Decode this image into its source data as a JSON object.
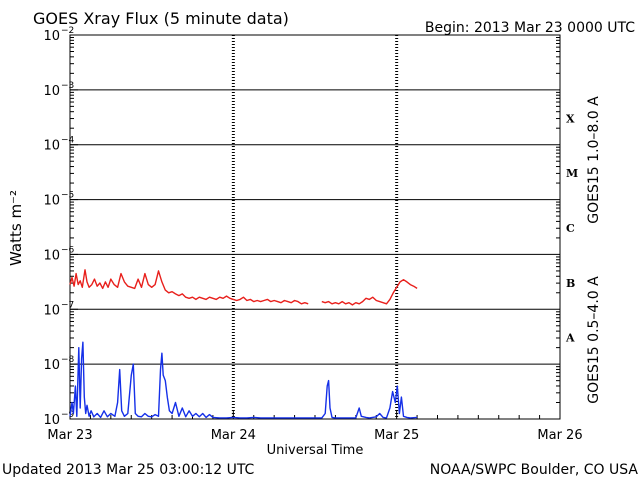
{
  "title": "GOES Xray Flux (5 minute data)",
  "begin": "Begin:  2013 Mar 23 0000 UTC",
  "updated": "Updated 2013 Mar 25 03:00:12 UTC",
  "credit": "NOAA/SWPC Boulder, CO USA",
  "chart_data": {
    "type": "line",
    "xlabel": "Universal Time",
    "ylabel": "Watts m⁻²",
    "y_scale": "log",
    "ylim": [
      1e-09,
      0.01
    ],
    "xlim": [
      0,
      72
    ],
    "x_unit": "hours after 2013 Mar 23 0000 UTC",
    "x_ticks": [
      {
        "x": 0,
        "label": "Mar 23"
      },
      {
        "x": 24,
        "label": "Mar 24"
      },
      {
        "x": 48,
        "label": "Mar 25"
      },
      {
        "x": 72,
        "label": "Mar 26"
      }
    ],
    "y_ticks": [
      {
        "exp": -2,
        "label": "10"
      },
      {
        "exp": -3,
        "label": "10"
      },
      {
        "exp": -4,
        "label": "10"
      },
      {
        "exp": -5,
        "label": "10"
      },
      {
        "exp": -6,
        "label": "10"
      },
      {
        "exp": -7,
        "label": "10"
      },
      {
        "exp": -8,
        "label": "10"
      },
      {
        "exp": -9,
        "label": "10"
      }
    ],
    "flare_classes": [
      {
        "label": "X",
        "exp": -3.5
      },
      {
        "label": "M",
        "exp": -4.5
      },
      {
        "label": "C",
        "exp": -5.5
      },
      {
        "label": "B",
        "exp": -6.5
      },
      {
        "label": "A",
        "exp": -7.5
      }
    ],
    "grid": true,
    "series": [
      {
        "name": "GOES15 1.0–8.0 A",
        "color": "#e8201c",
        "points": [
          [
            0,
            -6.55
          ],
          [
            0.3,
            -6.42
          ],
          [
            0.6,
            -6.58
          ],
          [
            0.9,
            -6.35
          ],
          [
            1.2,
            -6.55
          ],
          [
            1.5,
            -6.48
          ],
          [
            1.8,
            -6.6
          ],
          [
            2.2,
            -6.28
          ],
          [
            2.5,
            -6.5
          ],
          [
            2.8,
            -6.6
          ],
          [
            3.2,
            -6.55
          ],
          [
            3.6,
            -6.45
          ],
          [
            4.0,
            -6.58
          ],
          [
            4.4,
            -6.52
          ],
          [
            4.8,
            -6.62
          ],
          [
            5.2,
            -6.5
          ],
          [
            5.6,
            -6.6
          ],
          [
            6.0,
            -6.45
          ],
          [
            6.5,
            -6.55
          ],
          [
            7.0,
            -6.6
          ],
          [
            7.5,
            -6.35
          ],
          [
            8.0,
            -6.5
          ],
          [
            8.5,
            -6.58
          ],
          [
            9.0,
            -6.6
          ],
          [
            9.5,
            -6.62
          ],
          [
            10.0,
            -6.45
          ],
          [
            10.5,
            -6.6
          ],
          [
            11.0,
            -6.35
          ],
          [
            11.5,
            -6.55
          ],
          [
            12.0,
            -6.6
          ],
          [
            12.5,
            -6.55
          ],
          [
            13.0,
            -6.3
          ],
          [
            13.5,
            -6.5
          ],
          [
            14.0,
            -6.65
          ],
          [
            14.5,
            -6.7
          ],
          [
            15.0,
            -6.68
          ],
          [
            15.5,
            -6.72
          ],
          [
            16.0,
            -6.75
          ],
          [
            16.5,
            -6.72
          ],
          [
            17.0,
            -6.78
          ],
          [
            17.5,
            -6.8
          ],
          [
            18.0,
            -6.78
          ],
          [
            18.5,
            -6.82
          ],
          [
            19.0,
            -6.78
          ],
          [
            19.5,
            -6.8
          ],
          [
            20.0,
            -6.82
          ],
          [
            20.5,
            -6.78
          ],
          [
            21.0,
            -6.8
          ],
          [
            21.5,
            -6.82
          ],
          [
            22.0,
            -6.78
          ],
          [
            22.5,
            -6.8
          ],
          [
            23.0,
            -6.76
          ],
          [
            23.5,
            -6.8
          ],
          [
            24.0,
            -6.82
          ],
          [
            24.5,
            -6.84
          ],
          [
            25.0,
            -6.82
          ],
          [
            25.5,
            -6.78
          ],
          [
            26.0,
            -6.84
          ],
          [
            26.5,
            -6.82
          ],
          [
            27.0,
            -6.86
          ],
          [
            27.5,
            -6.84
          ],
          [
            28.0,
            -6.86
          ],
          [
            28.5,
            -6.84
          ],
          [
            29.0,
            -6.82
          ],
          [
            29.5,
            -6.86
          ],
          [
            30.0,
            -6.84
          ],
          [
            30.5,
            -6.86
          ],
          [
            31.0,
            -6.88
          ],
          [
            31.5,
            -6.84
          ],
          [
            32.0,
            -6.86
          ],
          [
            32.5,
            -6.88
          ],
          [
            33.0,
            -6.84
          ],
          [
            33.5,
            -6.86
          ],
          [
            34.0,
            -6.9
          ],
          [
            34.5,
            -6.88
          ],
          [
            35.0,
            -6.9
          ],
          null,
          [
            37.0,
            -6.86
          ],
          [
            37.5,
            -6.88
          ],
          [
            38.0,
            -6.86
          ],
          [
            38.5,
            -6.9
          ],
          [
            39.0,
            -6.88
          ],
          [
            39.5,
            -6.9
          ],
          [
            40.0,
            -6.86
          ],
          [
            40.5,
            -6.9
          ],
          [
            41.0,
            -6.88
          ],
          [
            41.5,
            -6.92
          ],
          [
            42.0,
            -6.88
          ],
          [
            42.5,
            -6.9
          ],
          [
            43.0,
            -6.86
          ],
          [
            43.5,
            -6.8
          ],
          [
            44.0,
            -6.82
          ],
          [
            44.5,
            -6.78
          ],
          [
            45.0,
            -6.84
          ],
          [
            45.5,
            -6.86
          ],
          [
            46.0,
            -6.88
          ],
          [
            46.5,
            -6.9
          ],
          [
            47.0,
            -6.82
          ],
          [
            47.5,
            -6.7
          ],
          [
            48.0,
            -6.6
          ],
          [
            48.5,
            -6.5
          ],
          [
            49.0,
            -6.46
          ],
          [
            49.5,
            -6.5
          ],
          [
            50.0,
            -6.55
          ],
          [
            50.5,
            -6.58
          ],
          [
            51.0,
            -6.62
          ]
        ]
      },
      {
        "name": "GOES15 0.5–4.0 A",
        "color": "#1530e8",
        "points": [
          [
            0,
            -8.95
          ],
          [
            0.3,
            -8.7
          ],
          [
            0.5,
            -8.9
          ],
          [
            0.8,
            -8.4
          ],
          [
            1.0,
            -8.95
          ],
          [
            1.3,
            -7.7
          ],
          [
            1.5,
            -8.8
          ],
          [
            1.7,
            -7.9
          ],
          [
            1.9,
            -7.6
          ],
          [
            2.1,
            -8.6
          ],
          [
            2.3,
            -8.9
          ],
          [
            2.5,
            -8.75
          ],
          [
            2.8,
            -8.95
          ],
          [
            3.1,
            -8.85
          ],
          [
            3.5,
            -8.96
          ],
          [
            4.0,
            -8.9
          ],
          [
            4.5,
            -8.97
          ],
          [
            5.0,
            -8.85
          ],
          [
            5.5,
            -8.96
          ],
          [
            6.0,
            -8.9
          ],
          [
            6.6,
            -8.95
          ],
          [
            7.0,
            -8.7
          ],
          [
            7.3,
            -8.1
          ],
          [
            7.6,
            -8.85
          ],
          [
            8.0,
            -8.95
          ],
          [
            8.5,
            -8.9
          ],
          [
            9.0,
            -8.2
          ],
          [
            9.3,
            -8.0
          ],
          [
            9.6,
            -8.9
          ],
          [
            10.0,
            -8.95
          ],
          [
            10.5,
            -8.96
          ],
          [
            11.0,
            -8.9
          ],
          [
            11.5,
            -8.95
          ],
          [
            12.0,
            -8.96
          ],
          [
            12.5,
            -8.92
          ],
          [
            13.0,
            -8.95
          ],
          [
            13.3,
            -8.1
          ],
          [
            13.5,
            -7.8
          ],
          [
            13.7,
            -8.2
          ],
          [
            14.0,
            -8.3
          ],
          [
            14.3,
            -8.6
          ],
          [
            14.6,
            -8.85
          ],
          [
            15.0,
            -8.9
          ],
          [
            15.5,
            -8.7
          ],
          [
            16.0,
            -8.95
          ],
          [
            16.5,
            -8.8
          ],
          [
            17.0,
            -8.96
          ],
          [
            17.5,
            -8.85
          ],
          [
            18.0,
            -8.95
          ],
          [
            18.5,
            -8.9
          ],
          [
            19.0,
            -8.96
          ],
          [
            19.5,
            -8.9
          ],
          [
            20.0,
            -8.97
          ],
          [
            20.5,
            -8.92
          ],
          [
            21.0,
            -8.97
          ],
          [
            22.0,
            -8.98
          ],
          [
            23.0,
            -8.98
          ],
          [
            24.0,
            -8.97
          ],
          [
            25.0,
            -8.98
          ],
          [
            26.0,
            -8.98
          ],
          [
            27.0,
            -8.97
          ],
          [
            28.0,
            -8.98
          ],
          [
            29.0,
            -8.98
          ],
          [
            30.0,
            -8.98
          ],
          [
            31.0,
            -8.98
          ],
          [
            32.0,
            -8.98
          ],
          [
            33.0,
            -8.98
          ],
          [
            34.0,
            -8.98
          ],
          [
            35.0,
            -8.98
          ],
          [
            36.0,
            -8.98
          ],
          [
            37.0,
            -8.98
          ],
          [
            37.5,
            -8.9
          ],
          [
            37.8,
            -8.4
          ],
          [
            38.0,
            -8.3
          ],
          [
            38.2,
            -8.8
          ],
          [
            38.5,
            -8.97
          ],
          [
            39.0,
            -8.98
          ],
          [
            40.0,
            -8.98
          ],
          [
            41.0,
            -8.98
          ],
          [
            42.0,
            -8.98
          ],
          [
            42.5,
            -8.8
          ],
          [
            42.8,
            -8.95
          ],
          [
            43.5,
            -8.97
          ],
          [
            44.0,
            -8.98
          ],
          [
            45.0,
            -8.96
          ],
          [
            45.5,
            -8.9
          ],
          [
            46.0,
            -8.97
          ],
          [
            46.5,
            -8.98
          ],
          [
            47.0,
            -8.8
          ],
          [
            47.4,
            -8.5
          ],
          [
            47.8,
            -8.7
          ],
          [
            48.1,
            -8.4
          ],
          [
            48.4,
            -8.9
          ],
          [
            48.7,
            -8.6
          ],
          [
            49.0,
            -8.95
          ],
          [
            49.5,
            -8.97
          ],
          [
            50.0,
            -8.98
          ],
          [
            51.0,
            -8.97
          ]
        ]
      }
    ]
  }
}
